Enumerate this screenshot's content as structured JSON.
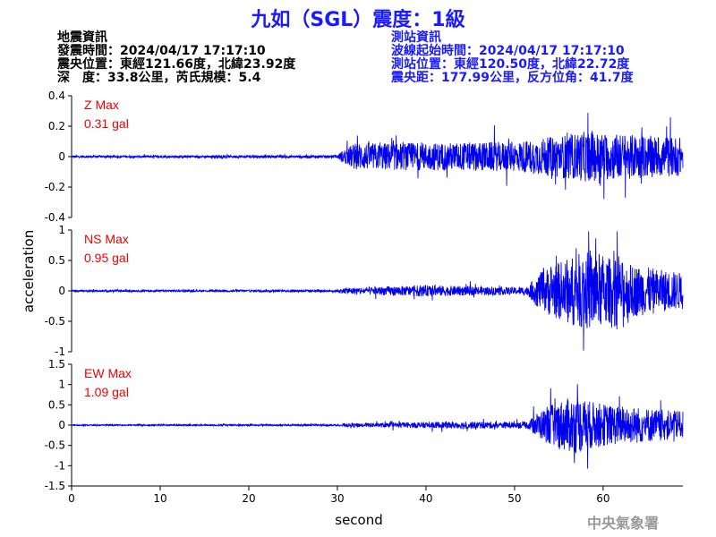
{
  "header": {
    "title": "九如（SGL）震度：1級"
  },
  "earthquake_info": {
    "heading": "地震資訊",
    "origin_time": "發震時間：2024/04/17 17:17:10",
    "epicenter": "震央位置：東經121.66度，北緯23.92度",
    "depth_magnitude": "深　度：33.8公里，芮氏規模：5.4"
  },
  "station_info": {
    "heading": "測站資訊",
    "wave_start": "波線起始時間：2024/04/17 17:17:10",
    "location": "測站位置：東經120.50度，北緯22.72度",
    "distance": "震央距：177.99公里，反方位角：41.7度"
  },
  "footer": {
    "agency": "中央氣象署"
  },
  "colors": {
    "trace": "#0000ee",
    "max_label": "#ee0000",
    "title": "#1a1aff"
  },
  "chart_data": {
    "type": "line",
    "xlabel": "second",
    "ylabel": "acceleration",
    "xlim": [
      0,
      69
    ],
    "xticks": [
      0,
      10,
      20,
      30,
      40,
      50,
      60
    ],
    "grid": false,
    "channels": [
      {
        "name": "Z",
        "max_label": "Z Max",
        "max_value": "0.31 gal",
        "ylim": [
          -0.4,
          0.4
        ],
        "yticks": [
          -0.4,
          -0.2,
          0,
          0.2,
          0.4
        ],
        "ytick_labels": [
          "-0.4",
          "-0.2",
          "0",
          "0.2",
          "0.4"
        ],
        "envelope": [
          [
            0,
            0.01
          ],
          [
            30,
            0.012
          ],
          [
            30.5,
            0.05
          ],
          [
            32,
            0.12
          ],
          [
            40,
            0.12
          ],
          [
            50,
            0.13
          ],
          [
            53,
            0.16
          ],
          [
            58,
            0.22
          ],
          [
            62,
            0.2
          ],
          [
            66,
            0.18
          ],
          [
            69,
            0.17
          ]
        ]
      },
      {
        "name": "NS",
        "max_label": "NS Max",
        "max_value": "0.95 gal",
        "ylim": [
          -1,
          1
        ],
        "yticks": [
          -1,
          -0.5,
          0,
          0.5,
          1
        ],
        "ytick_labels": [
          "-1",
          "-0.5",
          "0",
          "0.5",
          "1"
        ],
        "envelope": [
          [
            0,
            0.02
          ],
          [
            30,
            0.025
          ],
          [
            31,
            0.07
          ],
          [
            40,
            0.12
          ],
          [
            50,
            0.08
          ],
          [
            51.5,
            0.1
          ],
          [
            52.5,
            0.35
          ],
          [
            54,
            0.55
          ],
          [
            57,
            0.8
          ],
          [
            59,
            0.9
          ],
          [
            61,
            0.7
          ],
          [
            64,
            0.55
          ],
          [
            67,
            0.45
          ],
          [
            69,
            0.4
          ]
        ]
      },
      {
        "name": "EW",
        "max_label": "EW Max",
        "max_value": "1.09 gal",
        "ylim": [
          -1.5,
          1.5
        ],
        "yticks": [
          -1.5,
          -1,
          -0.5,
          0,
          0.5,
          1,
          1.5
        ],
        "ytick_labels": [
          "-1.5",
          "-1",
          "-0.5",
          "0",
          "0.5",
          "1",
          "1.5"
        ],
        "envelope": [
          [
            0,
            0.02
          ],
          [
            30,
            0.03
          ],
          [
            31,
            0.06
          ],
          [
            40,
            0.1
          ],
          [
            45,
            0.12
          ],
          [
            50,
            0.1
          ],
          [
            51.5,
            0.12
          ],
          [
            52.5,
            0.4
          ],
          [
            55,
            0.8
          ],
          [
            57,
            0.95
          ],
          [
            59,
            0.75
          ],
          [
            61,
            0.65
          ],
          [
            64,
            0.6
          ],
          [
            67,
            0.5
          ],
          [
            69,
            0.45
          ]
        ]
      }
    ]
  }
}
